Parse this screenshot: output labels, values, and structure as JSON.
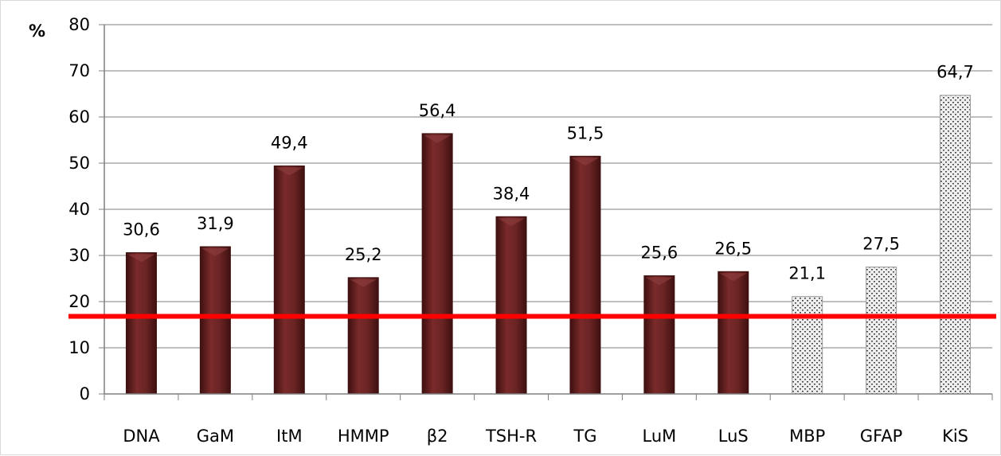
{
  "chart_data": {
    "type": "bar",
    "ylabel": "%",
    "ylim": [
      0,
      80
    ],
    "y_ticks": [
      0,
      10,
      20,
      30,
      40,
      50,
      60,
      70,
      80
    ],
    "grid": "horizontal",
    "categories": [
      "DNA",
      "GaM",
      "ItM",
      "HMMP",
      "β2",
      "TSH-R",
      "TG",
      "LuM",
      "LuS",
      "MBP",
      "GFAP",
      "KiS"
    ],
    "values": [
      30.6,
      31.9,
      49.4,
      25.2,
      56.4,
      38.4,
      51.5,
      25.6,
      26.5,
      21.1,
      27.5,
      64.7
    ],
    "value_labels": [
      "30,6",
      "31,9",
      "49,4",
      "25,2",
      "56,4",
      "38,4",
      "51,5",
      "25,6",
      "26,5",
      "21,1",
      "27,5",
      "64,7"
    ],
    "bar_styles": [
      "solid",
      "solid",
      "solid",
      "solid",
      "solid",
      "solid",
      "solid",
      "solid",
      "solid",
      "dotted",
      "dotted",
      "dotted"
    ],
    "reference_line_y": 16.8,
    "colors": {
      "solid_bar": "#6b2424",
      "solid_bar_dark": "#3e1010",
      "dotted_bar_bg": "#eeeeee",
      "dotted_bar_dot": "#444444",
      "reference_line": "#ff0000",
      "grid": "#7f7f7f",
      "axis": "#7f7f7f"
    }
  }
}
